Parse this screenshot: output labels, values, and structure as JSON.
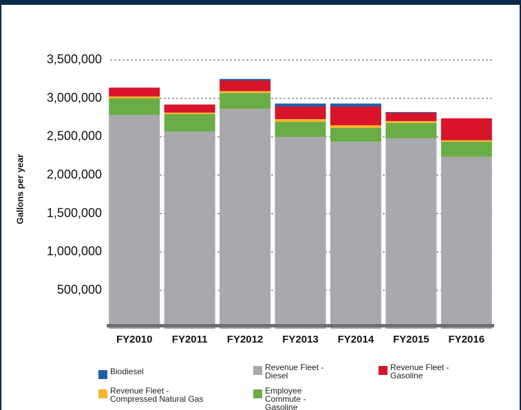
{
  "chart_data": {
    "type": "stacked_bar",
    "y_label": "Gallons per year",
    "categories": [
      "FY2010",
      "FY2011",
      "FY2012",
      "FY2013",
      "FY2014",
      "FY2015",
      "FY2016"
    ],
    "series": [
      {
        "name": "Revenue Fleet - Diesel",
        "color": "#a7a9ac",
        "values": [
          2785000,
          2570000,
          2865000,
          2500000,
          2435000,
          2480000,
          2240000
        ]
      },
      {
        "name": "Employee Commute - Gasoline",
        "color": "#6aac46",
        "values": [
          215000,
          225000,
          205000,
          195000,
          180000,
          200000,
          195000
        ]
      },
      {
        "name": "Revenue Fleet - Compressed Natural Gas",
        "color": "#f5b52a",
        "values": [
          25000,
          20000,
          25000,
          35000,
          35000,
          25000,
          20000
        ]
      },
      {
        "name": "Revenue Fleet - Gasoline",
        "color": "#d7142a",
        "values": [
          115000,
          105000,
          138000,
          163000,
          243000,
          107000,
          285000
        ]
      },
      {
        "name": "Biodiesel",
        "color": "#1f5fa8",
        "values": [
          0,
          0,
          20000,
          40000,
          40000,
          10000,
          0
        ]
      }
    ],
    "ylim": [
      0,
      3750000
    ],
    "yticks": [
      {
        "value": 500000,
        "label": "500,000"
      },
      {
        "value": 1000000,
        "label": "1,000,000"
      },
      {
        "value": 1500000,
        "label": "1,500,000"
      },
      {
        "value": 2000000,
        "label": "2,000,000"
      },
      {
        "value": 2500000,
        "label": "2,500,000"
      },
      {
        "value": 3000000,
        "label": "3,000,000"
      },
      {
        "value": 3500000,
        "label": "3,500,000"
      }
    ],
    "grid": true
  }
}
